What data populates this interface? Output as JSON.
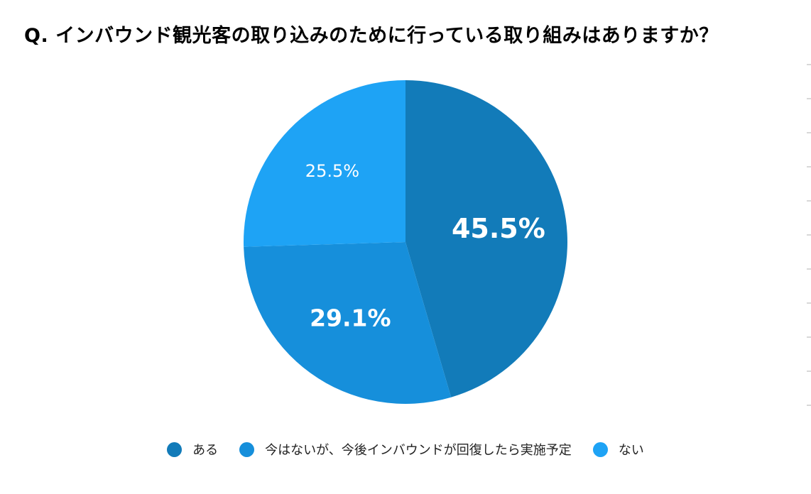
{
  "title": "Q. インバウンド観光客の取り込みのために行っている取り組みはありますか？",
  "chart_data": {
    "type": "pie",
    "title": "Q. インバウンド観光客の取り込みのために行っている取り組みはありますか？",
    "categories": [
      "ある",
      "今はないが、今後インバウンドが回復したら実施予定",
      "ない"
    ],
    "values": [
      45.5,
      29.1,
      25.5
    ],
    "labels": [
      "45.5%",
      "29.1%",
      "25.5%"
    ],
    "colors": [
      "#127bb9",
      "#168fdb",
      "#1ea3f5"
    ],
    "start_angle": "12 o'clock",
    "direction": "clockwise",
    "legend_position": "bottom"
  },
  "legend": {
    "items": [
      {
        "label": "ある",
        "color": "#127bb9"
      },
      {
        "label": "今はないが、今後インバウンドが回復したら実施予定",
        "color": "#168fdb"
      },
      {
        "label": "ない",
        "color": "#1ea3f5"
      }
    ]
  }
}
